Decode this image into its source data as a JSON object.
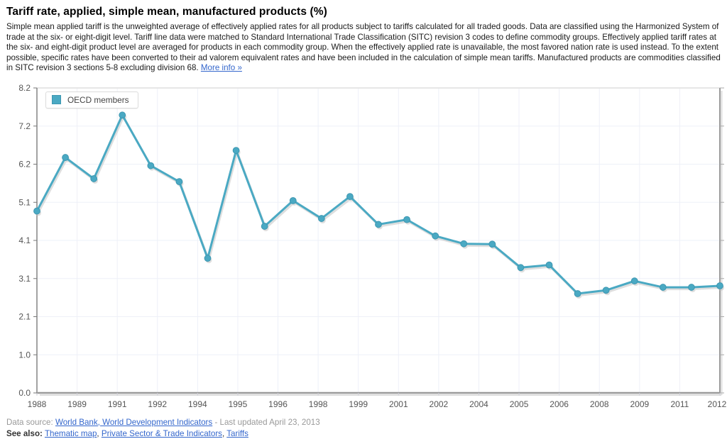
{
  "page": {
    "title": "Tariff rate, applied, simple mean, manufactured products (%)",
    "description": "Simple mean applied tariff is the unweighted average of effectively applied rates for all products subject to tariffs calculated for all traded goods. Data are classified using the Harmonized System of trade at the six- or eight-digit level. Tariff line data were matched to Standard International Trade Classification (SITC) revision 3 codes to define commodity groups. Effectively applied tariff rates at the six- and eight-digit product level are averaged for products in each commodity group. When the effectively applied rate is unavailable, the most favored nation rate is used instead. To the extent possible, specific rates have been converted to their ad valorem equivalent rates and have been included in the calculation of simple mean tariffs. Manufactured products are commodities classified in SITC revision 3 sections 5-8 excluding division 68.",
    "more_info_link": "More info »"
  },
  "legend": {
    "items": [
      {
        "label": "OECD members",
        "color": "#4aa9c3"
      }
    ]
  },
  "chart_data": {
    "type": "line",
    "title": "Tariff rate, applied, simple mean, manufactured products (%)",
    "x": [
      1988,
      1989,
      1990,
      1991,
      1992,
      1993,
      1994,
      1995,
      1996,
      1997,
      1998,
      1999,
      2000,
      2001,
      2002,
      2003,
      2004,
      2005,
      2006,
      2007,
      2008,
      2009,
      2010,
      2011,
      2012
    ],
    "series": [
      {
        "name": "OECD members",
        "color": "#4aa9c3",
        "marker_border": "#3e97b1",
        "values": [
          4.89,
          6.33,
          5.76,
          7.47,
          6.11,
          5.68,
          3.62,
          6.52,
          4.48,
          5.17,
          4.69,
          5.28,
          4.53,
          4.66,
          4.22,
          4.01,
          4.0,
          3.37,
          3.44,
          2.67,
          2.76,
          3.01,
          2.84,
          2.84,
          2.88
        ]
      }
    ],
    "ylim": [
      0,
      8.2
    ],
    "y_tick_labels": [
      "8.2",
      "7.2",
      "6.2",
      "5.1",
      "4.1",
      "3.1",
      "2.1",
      "1.0",
      "0.0"
    ],
    "x_tick_labels": [
      "1988",
      "1989",
      "1991",
      "1992",
      "1994",
      "1995",
      "1996",
      "1998",
      "1999",
      "2001",
      "2002",
      "2004",
      "2005",
      "2006",
      "2008",
      "2009",
      "2011",
      "2012"
    ],
    "grid": true,
    "legend_position": "top-left",
    "xlabel": "",
    "ylabel": ""
  },
  "footer": {
    "data_source_prefix": "Data source:",
    "data_source_link": "World Bank, World Development Indicators",
    "last_updated": "- Last updated April 23, 2013",
    "see_also_label": "See also:",
    "see_also_links": [
      "Thematic map",
      "Private Sector & Trade Indicators",
      "Tariffs"
    ],
    "separator": ","
  },
  "colors": {
    "link": "#3366cc",
    "line": "#4aa9c3",
    "grid": "#eef0f8",
    "axis_text": "#555"
  }
}
